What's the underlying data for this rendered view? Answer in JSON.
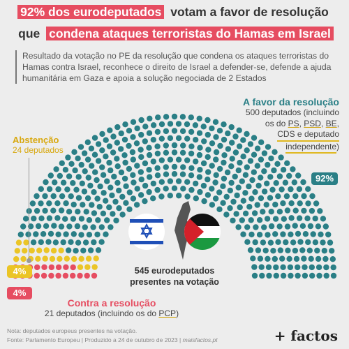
{
  "title": {
    "line1_highlight": "92% dos eurodeputados",
    "line1_rest": "votam a favor de resolução",
    "line2_lead": "que",
    "line2_highlight": "condena ataques terroristas do Hamas em Israel"
  },
  "description": "Resultado da votação no PE da resolução que condena os ataques terroristas do Hamas contra Israel, reconhece o direito de Israel a defender-se, defende a ajuda humanitária em Gaza e apoia a solução negociada de 2 Estados",
  "labels": {
    "favor_title": "A favor da resolução",
    "favor_sub1": "500 deputados (incluindo",
    "favor_sub2_a": "os do ",
    "favor_ps": "PS",
    "favor_sep1": ", ",
    "favor_psd": "PSD",
    "favor_sep2": ", ",
    "favor_be": "BE",
    "favor_sep3": ",",
    "favor_sub3": "CDS e deputado",
    "favor_sub4": "independente",
    "favor_sub4_end": ")",
    "favor_pct": "92%",
    "abs_title": "Abstenção",
    "abs_sub": "24 deputados",
    "abs_pct": "4%",
    "con_pct": "4%",
    "con_title": "Contra a resolução",
    "con_sub_a": "21 deputados (incluindo os do ",
    "con_pcp": "PCP",
    "con_sub_b": ")",
    "center_line1": "545 eurodeputados",
    "center_line2": "presentes na votação"
  },
  "footer": {
    "note": "Nota: deputados europeus presentes na votação.",
    "source": "Fonte: Parlamento Europeu | Produzido a 24 de outubro de 2023 | ",
    "site": "maisfactos.pt",
    "brand": "+ factos"
  },
  "colors": {
    "favor": "#2a7f86",
    "abstention": "#ebc526",
    "against": "#e64d61",
    "highlight": "#e64d61"
  },
  "chart_data": {
    "type": "parliament",
    "title": "",
    "total": 545,
    "series": [
      {
        "name": "A favor da resolução",
        "value": 500,
        "percent": 92
      },
      {
        "name": "Abstenção",
        "value": 24,
        "percent": 4
      },
      {
        "name": "Contra a resolução",
        "value": 21,
        "percent": 4
      }
    ]
  }
}
